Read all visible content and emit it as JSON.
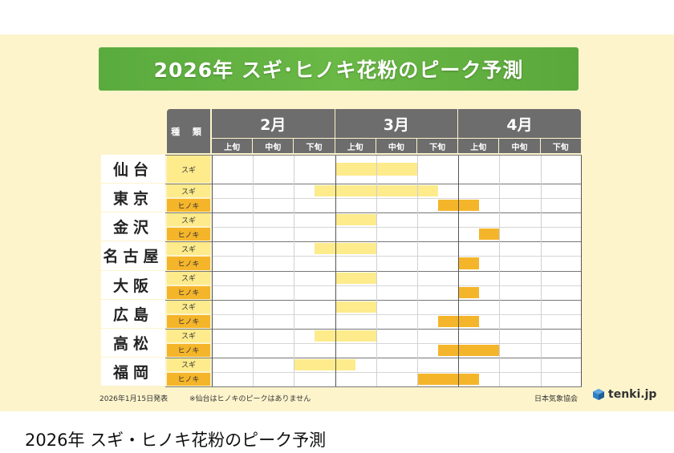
{
  "title": "2026年 スギ･ヒノキ花粉のピーク予測",
  "caption": "2026年 スギ・ヒノキ花粉のピーク予測",
  "footnote_date": "2026年1月15日発表",
  "footnote_note": "※仙台はヒノキのピークはありません",
  "source": "日本気象協会",
  "brand": "tenki.jp",
  "colors": {
    "sugi": "#fdeb8c",
    "hinoki": "#f5b52a",
    "header": "#6d6d6d",
    "banner": "#62b141",
    "background": "#fdf4cc"
  },
  "chart_data": {
    "type": "table",
    "species_header": "種 類",
    "months": [
      "2月",
      "3月",
      "4月"
    ],
    "thirds": [
      "上旬",
      "中旬",
      "下旬",
      "上旬",
      "中旬",
      "下旬",
      "上旬",
      "中旬",
      "下旬"
    ],
    "period_unit": "旬 (1-9 = 2月上旬 ... 4月下旬)",
    "cities": [
      {
        "name": "仙台",
        "rows": [
          {
            "species": "スギ",
            "start": 4,
            "end": 6
          }
        ]
      },
      {
        "name": "東京",
        "rows": [
          {
            "species": "スギ",
            "start": 3.5,
            "end": 6.5
          },
          {
            "species": "ヒノキ",
            "start": 6.5,
            "end": 7.5
          }
        ]
      },
      {
        "name": "金沢",
        "rows": [
          {
            "species": "スギ",
            "start": 4,
            "end": 5
          },
          {
            "species": "ヒノキ",
            "start": 7.5,
            "end": 8
          }
        ]
      },
      {
        "name": "名古屋",
        "rows": [
          {
            "species": "スギ",
            "start": 3.5,
            "end": 5
          },
          {
            "species": "ヒノキ",
            "start": 7,
            "end": 7.5
          }
        ]
      },
      {
        "name": "大阪",
        "rows": [
          {
            "species": "スギ",
            "start": 4,
            "end": 5
          },
          {
            "species": "ヒノキ",
            "start": 7,
            "end": 7.5
          }
        ]
      },
      {
        "name": "広島",
        "rows": [
          {
            "species": "スギ",
            "start": 4,
            "end": 5
          },
          {
            "species": "ヒノキ",
            "start": 6.5,
            "end": 7.5
          }
        ]
      },
      {
        "name": "高松",
        "rows": [
          {
            "species": "スギ",
            "start": 3.5,
            "end": 5
          },
          {
            "species": "ヒノキ",
            "start": 6.5,
            "end": 8
          }
        ]
      },
      {
        "name": "福岡",
        "rows": [
          {
            "species": "スギ",
            "start": 3,
            "end": 4.5
          },
          {
            "species": "ヒノキ",
            "start": 6,
            "end": 7.5
          }
        ]
      }
    ]
  }
}
